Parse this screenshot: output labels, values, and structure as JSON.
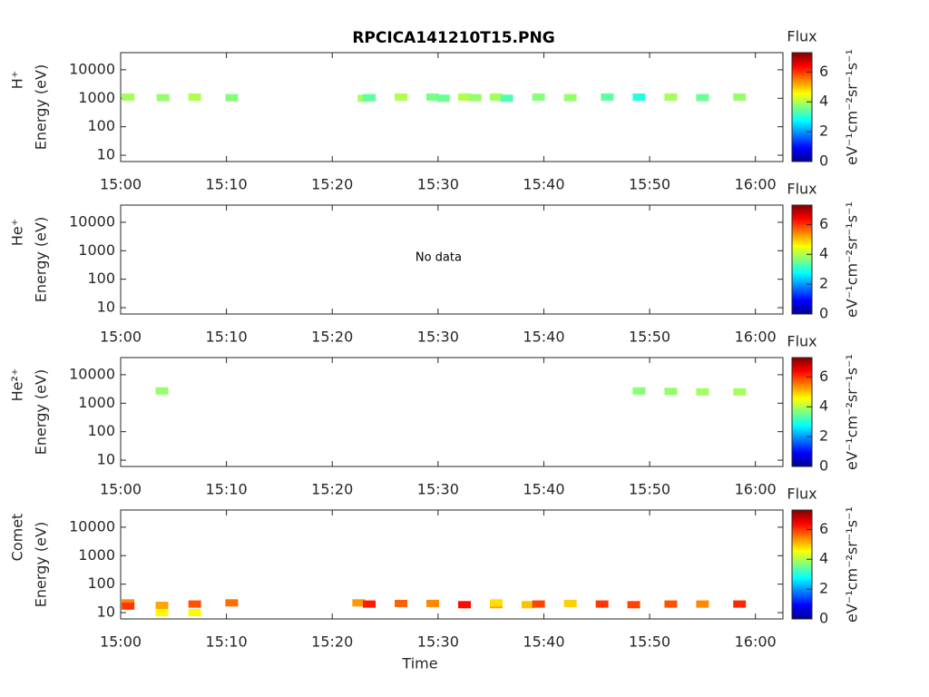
{
  "chart_data": [
    {
      "type": "spectrogram",
      "title": "RPCICA141210T15.PNG",
      "ylabel": "H⁺",
      "ylabel2": "Energy (eV)",
      "xlim": [
        0,
        62.6
      ],
      "xticks": [
        {
          "value": 0,
          "label": "15:00"
        },
        {
          "value": 10,
          "label": "15:10"
        },
        {
          "value": 20,
          "label": "15:20"
        },
        {
          "value": 30,
          "label": "15:30"
        },
        {
          "value": 40,
          "label": "15:40"
        },
        {
          "value": 50,
          "label": "15:50"
        },
        {
          "value": 60,
          "label": "16:00"
        }
      ],
      "ylim": [
        6,
        40000
      ],
      "yticks": [
        10,
        100,
        1000,
        10000
      ],
      "log_y": true,
      "colorbar": {
        "label": "Flux",
        "units": "eV⁻¹cm⁻²sr⁻¹s⁻¹",
        "clim": [
          0,
          7.3
        ],
        "ticks": [
          0,
          2,
          4,
          6
        ]
      },
      "x": [
        0.7,
        4,
        7,
        10.5,
        23,
        23.5,
        26.5,
        29.5,
        30.5,
        32.5,
        33.5,
        35.5,
        36.5,
        39.5,
        42.5,
        46,
        49,
        52,
        55,
        58.5
      ],
      "y": [
        1100,
        1050,
        1100,
        1050,
        1000,
        1050,
        1100,
        1100,
        1000,
        1100,
        1050,
        1100,
        1000,
        1100,
        1050,
        1100,
        1100,
        1100,
        1050,
        1100
      ],
      "z": [
        3.9,
        3.8,
        4.0,
        3.7,
        3.9,
        3.4,
        4.0,
        3.6,
        3.5,
        4.0,
        3.8,
        3.9,
        3.3,
        3.7,
        3.8,
        3.4,
        3.0,
        3.9,
        3.5,
        3.8
      ]
    },
    {
      "type": "spectrogram",
      "ylabel": "He⁺",
      "ylabel2": "Energy (eV)",
      "annotation": "No data",
      "xlim": [
        0,
        62.6
      ],
      "xticks": [
        {
          "value": 0,
          "label": "15:00"
        },
        {
          "value": 10,
          "label": "15:10"
        },
        {
          "value": 20,
          "label": "15:20"
        },
        {
          "value": 30,
          "label": "15:30"
        },
        {
          "value": 40,
          "label": "15:40"
        },
        {
          "value": 50,
          "label": "15:50"
        },
        {
          "value": 60,
          "label": "16:00"
        }
      ],
      "ylim": [
        6,
        40000
      ],
      "yticks": [
        10,
        100,
        1000,
        10000
      ],
      "log_y": true,
      "colorbar": {
        "label": "Flux",
        "units": "eV⁻¹cm⁻²sr⁻¹s⁻¹",
        "clim": [
          0,
          7.3
        ],
        "ticks": [
          0,
          2,
          4,
          6
        ]
      },
      "x": [],
      "y": [],
      "z": []
    },
    {
      "type": "spectrogram",
      "ylabel": "He²⁺",
      "ylabel2": "Energy (eV)",
      "xlim": [
        0,
        62.6
      ],
      "xticks": [
        {
          "value": 0,
          "label": "15:00"
        },
        {
          "value": 10,
          "label": "15:10"
        },
        {
          "value": 20,
          "label": "15:20"
        },
        {
          "value": 30,
          "label": "15:30"
        },
        {
          "value": 40,
          "label": "15:40"
        },
        {
          "value": 50,
          "label": "15:50"
        },
        {
          "value": 60,
          "label": "16:00"
        }
      ],
      "ylim": [
        6,
        40000
      ],
      "yticks": [
        10,
        100,
        1000,
        10000
      ],
      "log_y": true,
      "colorbar": {
        "label": "Flux",
        "units": "eV⁻¹cm⁻²sr⁻¹s⁻¹",
        "clim": [
          0,
          7.3
        ],
        "ticks": [
          0,
          2,
          4,
          6
        ]
      },
      "x": [
        3.9,
        49,
        52,
        55,
        58.5
      ],
      "y": [
        2700,
        2700,
        2600,
        2500,
        2500
      ],
      "z": [
        3.8,
        3.7,
        3.8,
        3.9,
        3.9
      ]
    },
    {
      "type": "spectrogram",
      "ylabel": "Comet",
      "ylabel2": "Energy (eV)",
      "xlabel": "Time",
      "xlim": [
        0,
        62.6
      ],
      "xticks": [
        {
          "value": 0,
          "label": "15:00"
        },
        {
          "value": 10,
          "label": "15:10"
        },
        {
          "value": 20,
          "label": "15:20"
        },
        {
          "value": 30,
          "label": "15:30"
        },
        {
          "value": 40,
          "label": "15:40"
        },
        {
          "value": 50,
          "label": "15:50"
        },
        {
          "value": 60,
          "label": "16:00"
        }
      ],
      "ylim": [
        6,
        40000
      ],
      "yticks": [
        10,
        100,
        1000,
        10000
      ],
      "log_y": true,
      "colorbar": {
        "label": "Flux",
        "units": "eV⁻¹cm⁻²sr⁻¹s⁻¹",
        "clim": [
          0,
          7.3
        ],
        "ticks": [
          0,
          2,
          4,
          6
        ]
      },
      "x": [
        0.7,
        0.7,
        3.9,
        3.9,
        7,
        7,
        10.5,
        22.5,
        23.5,
        26.5,
        29.5,
        32.5,
        35.5,
        35.5,
        38.5,
        39.5,
        42.5,
        45.5,
        48.5,
        52,
        55,
        58.5
      ],
      "y": [
        22,
        17,
        18,
        10,
        20,
        10,
        22,
        22,
        20,
        21,
        21,
        19,
        19,
        22,
        19,
        20,
        21,
        20,
        19,
        20,
        20,
        20
      ],
      "z": [
        5.4,
        6.0,
        5.2,
        4.6,
        5.8,
        4.6,
        5.6,
        5.3,
        6.2,
        5.7,
        5.4,
        6.3,
        5.2,
        4.8,
        5.0,
        5.9,
        4.9,
        6.0,
        5.9,
        5.8,
        5.4,
        6.1
      ]
    }
  ]
}
